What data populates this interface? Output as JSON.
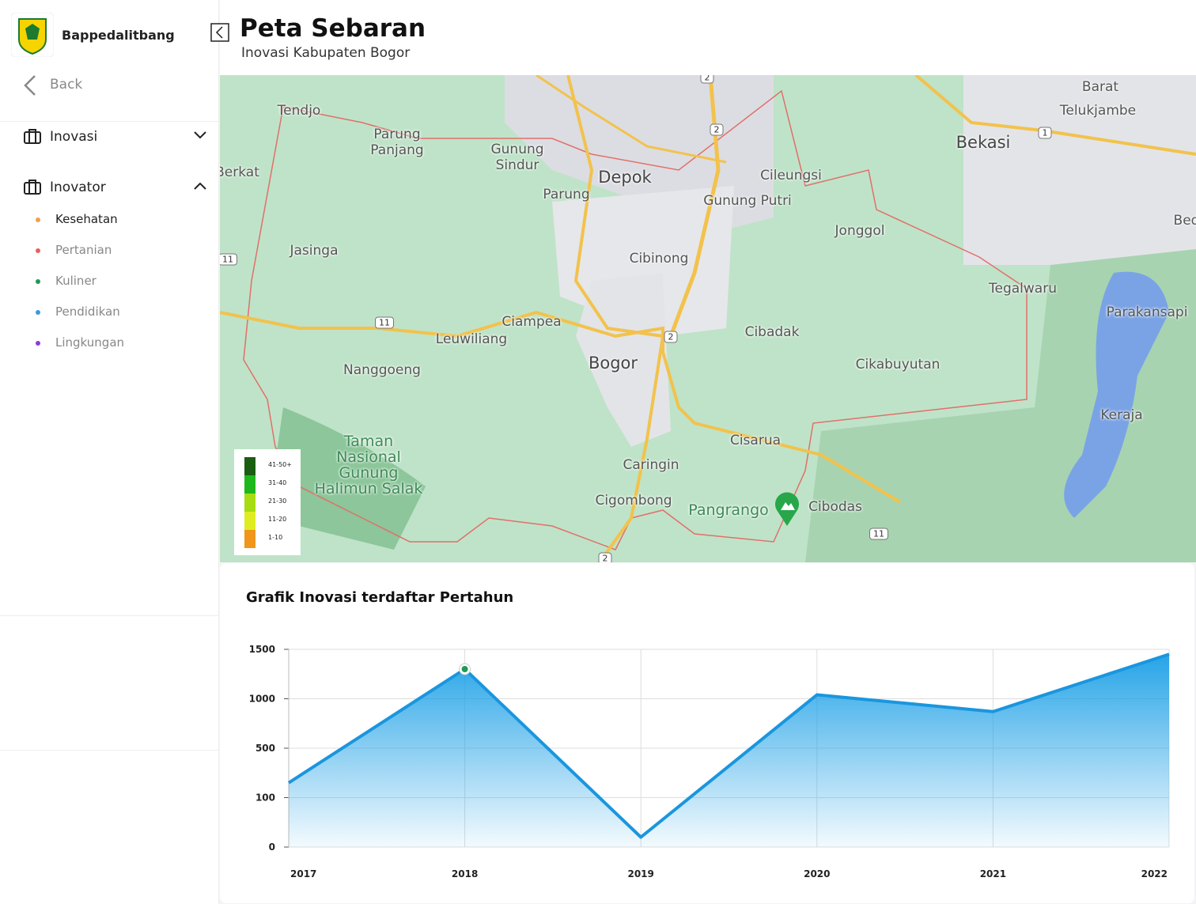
{
  "sidebar": {
    "brand": "Bappedalitbang",
    "back": "Back",
    "menu": [
      {
        "label": "Inovasi"
      },
      {
        "label": "Inovator",
        "items": [
          {
            "label": "Kesehatan",
            "color": "#f0a04b"
          },
          {
            "label": "Pertanian",
            "color": "#e8615a"
          },
          {
            "label": "Kuliner",
            "color": "#1f9a55"
          },
          {
            "label": "Pendidikan",
            "color": "#3a9bdc"
          },
          {
            "label": "Lingkungan",
            "color": "#8a3fd1"
          }
        ]
      }
    ]
  },
  "header": {
    "title": "Peta Sebaran",
    "subtitle": "Inovasi Kabupaten Bogor"
  },
  "map": {
    "labels": [
      "Tendjo",
      "Parung\nPanjang",
      "Gunung\nSindur",
      "Depok",
      "Parung",
      "Cileungsi",
      "Gunung Putri",
      "Bekasi",
      "Telukjambe",
      "Barat",
      "Jonggol",
      "Cibinong",
      "Jasinga",
      "Tegalwaru",
      "Parakansapi",
      "Ciampea",
      "Leuwiliang",
      "Cibadak",
      "Bogor",
      "Nanggoeng",
      "Cikabuyutan",
      "Keraja",
      "Taman\nNasional\nGunung\nHalimun Salak",
      "Cisarua",
      "Caringin",
      "Cigombong",
      "Pangrango",
      "Cibodas",
      "Berkat",
      "Bed"
    ],
    "shields": [
      "2",
      "2",
      "1",
      "11",
      "11",
      "2",
      "11",
      "2"
    ],
    "legend": [
      {
        "label": "41-50+",
        "color": "#1a5e12"
      },
      {
        "label": "31-40",
        "color": "#1fb81c"
      },
      {
        "label": "21-30",
        "color": "#a6dc12"
      },
      {
        "label": "11-20",
        "color": "#dfec22"
      },
      {
        "label": "1-10",
        "color": "#f0961a"
      }
    ]
  },
  "chart_data": {
    "type": "area",
    "title": "Grafik Inovasi terdaftar Pertahun",
    "categories": [
      "2017",
      "2018",
      "2019",
      "2020",
      "2021",
      "2022"
    ],
    "series": [
      {
        "name": "Inovasi",
        "color": "#1a96de",
        "values": [
          220,
          1300,
          20,
          1040,
          870,
          1450
        ]
      }
    ],
    "ylim": [
      0,
      1500
    ],
    "yticks": [
      0,
      100,
      500,
      1000,
      1500
    ],
    "grid": true,
    "highlight_color": "#1f9a55"
  }
}
